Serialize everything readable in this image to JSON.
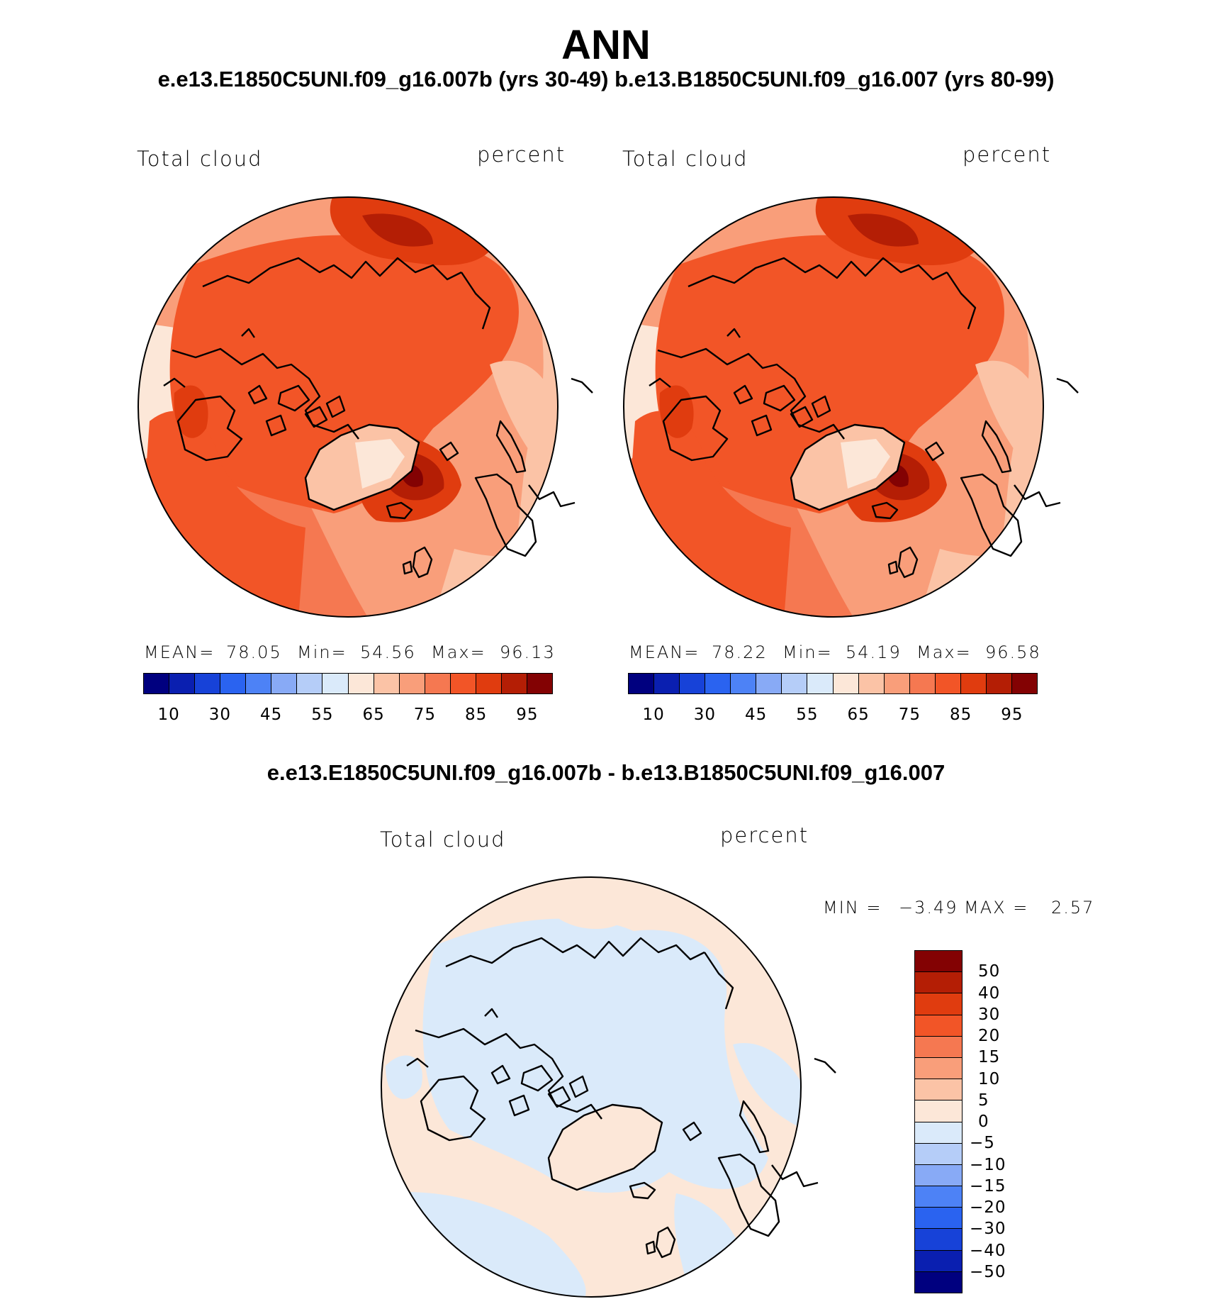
{
  "title": "ANN",
  "subtitle": "e.e13.E1850C5UNI.f09_g16.007b (yrs 30-49)  b.e13.B1850C5UNI.f09_g16.007 (yrs 80-99)",
  "diff_title": "e.e13.E1850C5UNI.f09_g16.007b - b.e13.B1850C5UNI.f09_g16.007",
  "panels": [
    {
      "variable": "Total cloud",
      "units": "percent",
      "stats": {
        "mean_label": "MEAN=",
        "mean": "78.05",
        "min_label": "Min=",
        "min": "54.56",
        "max_label": "Max=",
        "max": "96.13"
      }
    },
    {
      "variable": "Total cloud",
      "units": "percent",
      "stats": {
        "mean_label": "MEAN=",
        "mean": "78.22",
        "min_label": "Min=",
        "min": "54.19",
        "max_label": "Max=",
        "max": "96.58"
      }
    }
  ],
  "diff_panel": {
    "variable": "Total cloud",
    "units": "percent",
    "stats": {
      "min_label": "MIN =",
      "min": "−3.49",
      "max_label": "MAX =",
      "max": "2.57"
    }
  },
  "colorbar_abs": {
    "colors": [
      "#00007f",
      "#0a1fb0",
      "#1742d8",
      "#2a63f0",
      "#4d82f6",
      "#88aaf6",
      "#b5cdf8",
      "#daeafa",
      "#fce7d8",
      "#fbc3a6",
      "#f99e7a",
      "#f57851",
      "#f25527",
      "#e03c0f",
      "#b41e05",
      "#830203"
    ],
    "labels": [
      "10",
      "30",
      "45",
      "55",
      "65",
      "75",
      "85",
      "95"
    ]
  },
  "colorbar_diff": {
    "colors": [
      "#830203",
      "#b41e05",
      "#e03c0f",
      "#f25527",
      "#f57851",
      "#f99e7a",
      "#fbc3a6",
      "#fce7d8",
      "#daeafa",
      "#b5cdf8",
      "#88aaf6",
      "#4d82f6",
      "#2a63f0",
      "#1742d8",
      "#0a1fb0",
      "#00007f"
    ],
    "labels": [
      "50",
      "40",
      "30",
      "20",
      "15",
      "10",
      "5",
      "0",
      "−5",
      "−10",
      "−15",
      "−20",
      "−30",
      "−40",
      "−50"
    ]
  }
}
